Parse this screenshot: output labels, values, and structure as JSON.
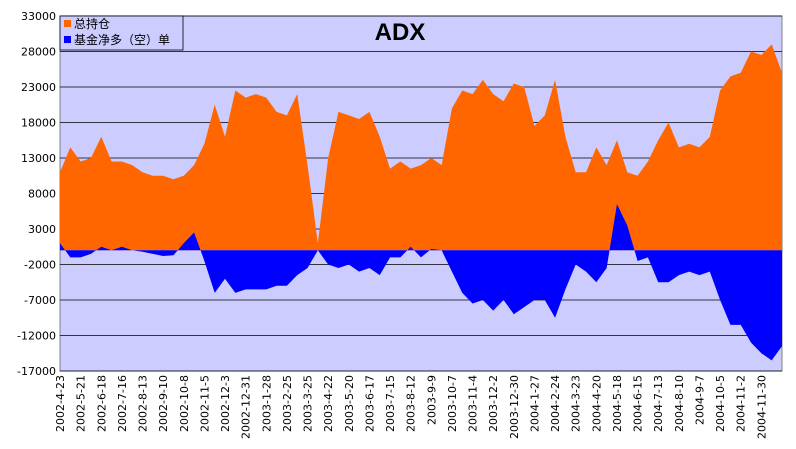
{
  "chart_data": {
    "type": "area",
    "title": "ADX",
    "categories": [
      "2002-4-23",
      null,
      "2002-5-21",
      null,
      "2002-6-18",
      null,
      "2002-7-16",
      null,
      "2002-8-13",
      null,
      "2002-9-10",
      null,
      "2002-10-8",
      null,
      "2002-11-5",
      null,
      "2002-12-3",
      null,
      "2002-12-31",
      null,
      "2003-1-28",
      null,
      "2003-2-25",
      null,
      "2003-3-25",
      null,
      "2003-4-22",
      null,
      "2003-5-20",
      null,
      "2003-6-17",
      null,
      "2003-7-15",
      null,
      "2003-8-12",
      null,
      "2003-9-9",
      null,
      "2003-10-7",
      null,
      "2003-11-4",
      null,
      "2003-12-2",
      null,
      "2003-12-30",
      null,
      "2004-1-27",
      null,
      "2004-2-24",
      null,
      "2004-3-23",
      null,
      "2004-4-20",
      null,
      "2004-5-18",
      null,
      "2004-6-15",
      null,
      "2004-7-13",
      null,
      "2004-8-10",
      null,
      "2004-9-7",
      null,
      "2004-10-5",
      null,
      "2004-11-2",
      null,
      "2004-11-30",
      null,
      null
    ],
    "series": [
      {
        "name": "总持仓",
        "color": "#ff6600",
        "values": [
          11000,
          14500,
          12500,
          13000,
          16000,
          12500,
          12500,
          12000,
          11000,
          10500,
          10500,
          10000,
          10500,
          12000,
          15000,
          20500,
          16000,
          22500,
          21500,
          22000,
          21500,
          19500,
          19000,
          22000,
          12000,
          1000,
          13000,
          19500,
          19000,
          18500,
          19500,
          16000,
          11500,
          12500,
          11500,
          12000,
          13000,
          12000,
          20000,
          22500,
          22000,
          24000,
          22000,
          21000,
          23500,
          23000,
          17500,
          19000,
          24000,
          16000,
          11000,
          11000,
          14500,
          12000,
          15500,
          11000,
          10500,
          12500,
          15500,
          18000,
          14500,
          15000,
          14500,
          16000,
          22500,
          24500,
          25000,
          28000,
          27500,
          29000,
          25000
        ]
      },
      {
        "name": "基金净多（空）单",
        "color": "#0000ff",
        "values": [
          1000,
          -1000,
          -1000,
          -500,
          500,
          0,
          500,
          0,
          -200,
          -500,
          -800,
          -700,
          1000,
          2500,
          -1500,
          -6000,
          -4000,
          -6000,
          -5500,
          -5500,
          -5500,
          -5000,
          -5000,
          -3500,
          -2500,
          0,
          -2000,
          -2500,
          -2000,
          -3000,
          -2500,
          -3500,
          -1000,
          -1000,
          500,
          -1000,
          200,
          0,
          -3000,
          -6000,
          -7500,
          -7000,
          -8500,
          -7000,
          -9000,
          -8000,
          -7000,
          -7000,
          -9500,
          -5500,
          -2000,
          -3000,
          -4500,
          -2500,
          6500,
          3500,
          -1500,
          -1000,
          -4500,
          -4500,
          -3500,
          -3000,
          -3500,
          -3000,
          -7000,
          -10500,
          -10500,
          -13000,
          -14500,
          -15500,
          -13500
        ]
      }
    ],
    "ylim": [
      -17000,
      33000
    ],
    "yticks": [
      -17000,
      -12000,
      -7000,
      -2000,
      3000,
      8000,
      13000,
      18000,
      23000,
      28000,
      33000
    ],
    "grid": true,
    "legend": "top-left",
    "background": "#ccccff"
  }
}
